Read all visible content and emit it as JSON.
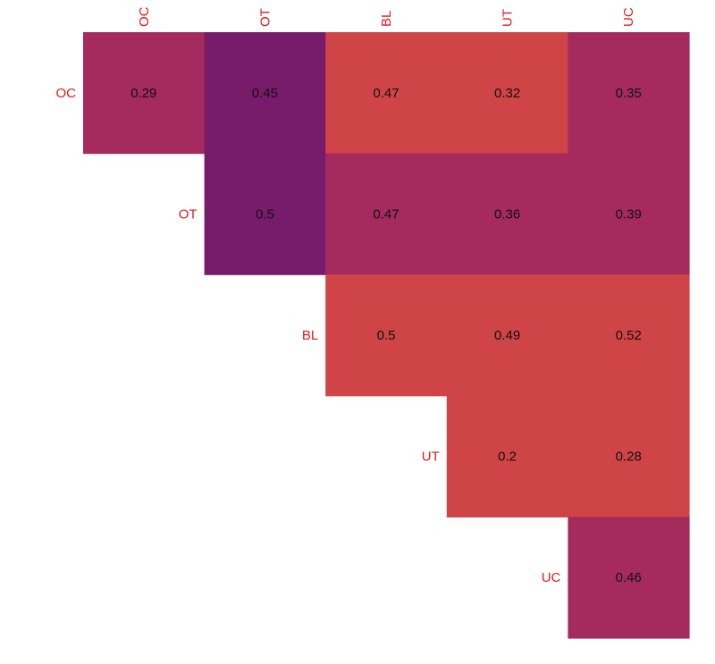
{
  "chart_data": {
    "type": "heatmap",
    "title": "",
    "xlabel": "",
    "ylabel": "",
    "legend": "none",
    "grid": false,
    "x_categories": [
      "OC",
      "OT",
      "BL",
      "UT",
      "UC"
    ],
    "y_categories": [
      "OC",
      "OT",
      "BL",
      "UT",
      "UC"
    ],
    "cells": [
      {
        "row": "OC",
        "col": "OC",
        "value": 0.29,
        "color": "#a52a5e"
      },
      {
        "row": "OC",
        "col": "OT",
        "value": 0.45,
        "color": "#771b6b"
      },
      {
        "row": "OC",
        "col": "BL",
        "value": 0.47,
        "color": "#cf4446"
      },
      {
        "row": "OC",
        "col": "UT",
        "value": 0.32,
        "color": "#cf4446"
      },
      {
        "row": "OC",
        "col": "UC",
        "value": 0.35,
        "color": "#a52a5e"
      },
      {
        "row": "OT",
        "col": "OT",
        "value": 0.5,
        "color": "#771b6b"
      },
      {
        "row": "OT",
        "col": "BL",
        "value": 0.47,
        "color": "#a52a5e"
      },
      {
        "row": "OT",
        "col": "UT",
        "value": 0.36,
        "color": "#a52a5e"
      },
      {
        "row": "OT",
        "col": "UC",
        "value": 0.39,
        "color": "#a52a5e"
      },
      {
        "row": "BL",
        "col": "BL",
        "value": 0.5,
        "color": "#cf4446"
      },
      {
        "row": "BL",
        "col": "UT",
        "value": 0.49,
        "color": "#cf4446"
      },
      {
        "row": "BL",
        "col": "UC",
        "value": 0.52,
        "color": "#cf4446"
      },
      {
        "row": "UT",
        "col": "UT",
        "value": 0.2,
        "color": "#cf4446"
      },
      {
        "row": "UT",
        "col": "UC",
        "value": 0.28,
        "color": "#cf4446"
      },
      {
        "row": "UC",
        "col": "UC",
        "value": 0.46,
        "color": "#a52a5e"
      }
    ],
    "label_color": "#e31a1c",
    "value_text_color": "#111111"
  }
}
